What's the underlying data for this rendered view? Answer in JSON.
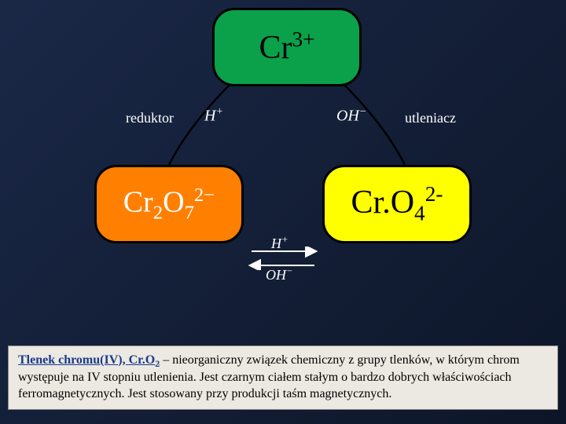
{
  "nodes": {
    "top": {
      "html": "Cr<sup>3+</sup>",
      "bg": "#0aa14a"
    },
    "left": {
      "html": "Cr<sub>2</sub>O<sub>7</sub><sup>2−</sup>",
      "bg": "#ff7f00"
    },
    "right": {
      "html": "Cr.O<sub>4</sub><sup>2-</sup>",
      "bg": "#ffff00"
    }
  },
  "side_labels": {
    "left": "reduktor",
    "right": "utleniacz"
  },
  "reagents": {
    "h_plus": "H<sup>+</sup>",
    "oh_minus": "OH<sup>−</sup>"
  },
  "textbox": {
    "title_html": "Tlenek chromu(IV), Cr.O<sub>2</sub>",
    "body": " – nieorganiczny związek chemiczny z grupy tlenków, w którym chrom występuje na IV stopniu utlenienia. Jest czarnym ciałem stałym o bardzo dobrych właściwościach ferromagnetycznych. Jest stosowany przy produkcji taśm magnetycznych."
  },
  "colors": {
    "background_from": "#1a2847",
    "background_to": "#0d1628",
    "textbox_bg": "#ece9e2",
    "title_color": "#1a3a8a"
  }
}
